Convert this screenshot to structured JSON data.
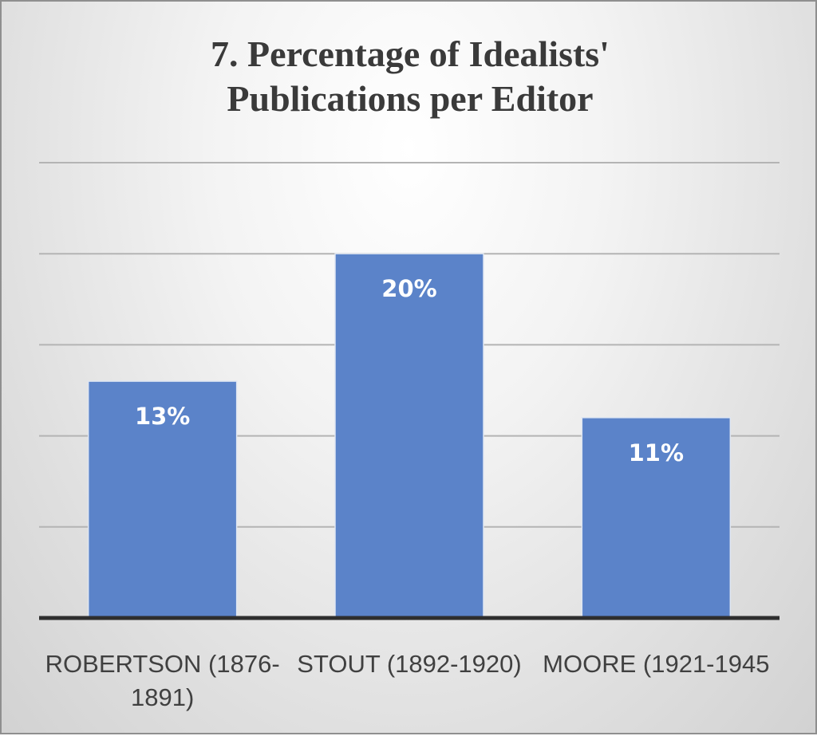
{
  "chart_data": {
    "type": "bar",
    "title_lines": [
      "7. Percentage of Idealists'",
      "Publications per Editor"
    ],
    "categories": [
      "ROBERTSON (1876-1891)",
      "STOUT (1892-1920)",
      "MOORE (1921-1945"
    ],
    "values": [
      13,
      20,
      11
    ],
    "data_labels": [
      "13%",
      "20%",
      "11%"
    ],
    "xlabel": "",
    "ylabel": "",
    "ylim": [
      0,
      25
    ],
    "y_tick_step": 5,
    "y_tick_labels_shown": false,
    "grid": true,
    "legend": "none",
    "colors": {
      "bar": "#5b83c9",
      "bar_border": "#dfe6f2",
      "grid": "#b4b4b4",
      "axis": "#2e2e2e",
      "data_label": "#ffffff",
      "title": "#3a3a3a",
      "category_label": "#404040"
    }
  }
}
